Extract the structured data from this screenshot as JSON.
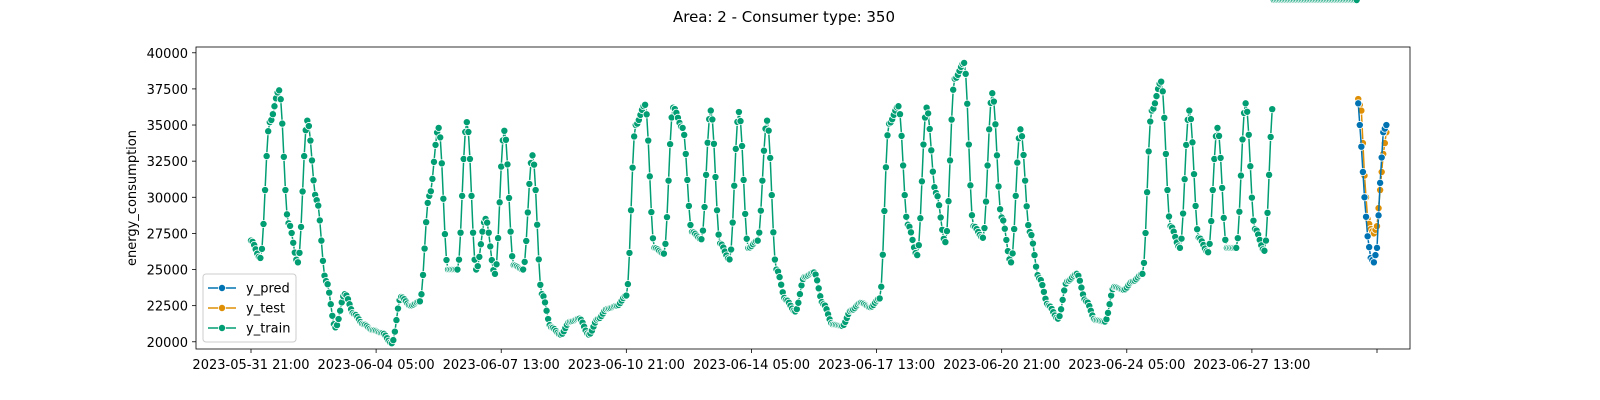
{
  "chart_data": {
    "type": "line",
    "title": "Area: 2 - Consumer type: 350",
    "xlabel": "",
    "ylabel": "energy_consumption",
    "ylim": [
      19500,
      40400
    ],
    "y_ticks": [
      20000,
      22500,
      25000,
      27500,
      30000,
      32500,
      35000,
      37500,
      40000
    ],
    "y_tick_labels": [
      "20000",
      "22500",
      "25000",
      "27500",
      "30000",
      "32500",
      "35000",
      "37500",
      "40000"
    ],
    "x_tick_labels": [
      "2023-05-31 21:00",
      "2023-06-04 05:00",
      "2023-06-07 13:00",
      "2023-06-10 21:00",
      "2023-06-14 05:00",
      "2023-06-17 13:00",
      "2023-06-20 21:00",
      "2023-06-24 05:00",
      "2023-06-27 13:00",
      ""
    ],
    "x_tick_index": [
      0,
      80,
      160,
      240,
      320,
      400,
      480,
      560,
      640,
      720
    ],
    "grid": false,
    "legend": "lower-left",
    "colors": {
      "y_pred": "#0173b2",
      "y_test": "#de8f05",
      "y_train": "#029e73"
    },
    "anchors": {
      "y_train": {
        "index": [
          0,
          6,
          12,
          18,
          24,
          30,
          36,
          42,
          48,
          54,
          60,
          66,
          72,
          78,
          84,
          90,
          96,
          102,
          108,
          114,
          120,
          126,
          132,
          138,
          144,
          150,
          156,
          162,
          168,
          174,
          180,
          186,
          192,
          198,
          204,
          210,
          216,
          222,
          228,
          234,
          240,
          246,
          252,
          258,
          264,
          270,
          276,
          282,
          288,
          294,
          300,
          306,
          312,
          318,
          324,
          330,
          336,
          342,
          348,
          354,
          360,
          366,
          372,
          378,
          384,
          390,
          396,
          402,
          408,
          414,
          420,
          426,
          432,
          438,
          444,
          450,
          456,
          462,
          468,
          474,
          480,
          486,
          492,
          498,
          504,
          510,
          516,
          522,
          528,
          534,
          540,
          546,
          552,
          558,
          564,
          570,
          576,
          582,
          588,
          594,
          600,
          606,
          612,
          618,
          624,
          630,
          636,
          642,
          648,
          654,
          660,
          666,
          672,
          678,
          684,
          690,
          696,
          702,
          708
        ],
        "values": [
          27000,
          25800,
          35200,
          37400,
          28200,
          25500,
          35300,
          29800,
          24200,
          21000,
          23300,
          21900,
          21200,
          20800,
          20600,
          19900,
          23100,
          22500,
          22800,
          30100,
          34800,
          25000,
          25000,
          35200,
          25000,
          28500,
          24700,
          34600,
          25300,
          25000,
          32900,
          23300,
          21000,
          20500,
          21400,
          21600,
          20500,
          21600,
          22300,
          22500,
          23200,
          35000,
          36400,
          26500,
          26100,
          36200,
          34800,
          27600,
          27100,
          36000,
          26800,
          25700,
          35900,
          26500,
          27000,
          35300,
          25000,
          22900,
          22100,
          24500,
          24800,
          22600,
          21200,
          21100,
          22200,
          22700,
          22400,
          23000,
          35100,
          36300,
          28100,
          26000,
          36200,
          30300,
          26900,
          38200,
          39300,
          28000,
          27200,
          37200,
          28600,
          25500,
          34700,
          27600,
          24400,
          22500,
          21600,
          24200,
          24700,
          22800,
          21500,
          21400,
          23800,
          23600,
          24200,
          24700,
          36000,
          38000,
          28000,
          26500,
          36000,
          27200,
          26200,
          34800,
          26500,
          26500,
          36500,
          27800,
          26300,
          36800
        ]
      },
      "y_test": {
        "index": [
          708,
          710,
          712,
          714,
          716,
          718,
          720,
          722,
          724,
          726
        ],
        "values": [
          36800,
          36000,
          31500,
          28500,
          27800,
          27500,
          28000,
          30500,
          33000,
          34500
        ]
      },
      "y_pred": {
        "index": [
          708,
          710,
          712,
          714,
          716,
          718,
          720,
          722,
          724,
          726
        ],
        "values": [
          36500,
          33500,
          30000,
          27300,
          25800,
          25500,
          26500,
          31000,
          34500,
          35000
        ]
      }
    },
    "series": [
      {
        "name": "y_pred"
      },
      {
        "name": "y_test"
      },
      {
        "name": "y_train"
      }
    ]
  }
}
